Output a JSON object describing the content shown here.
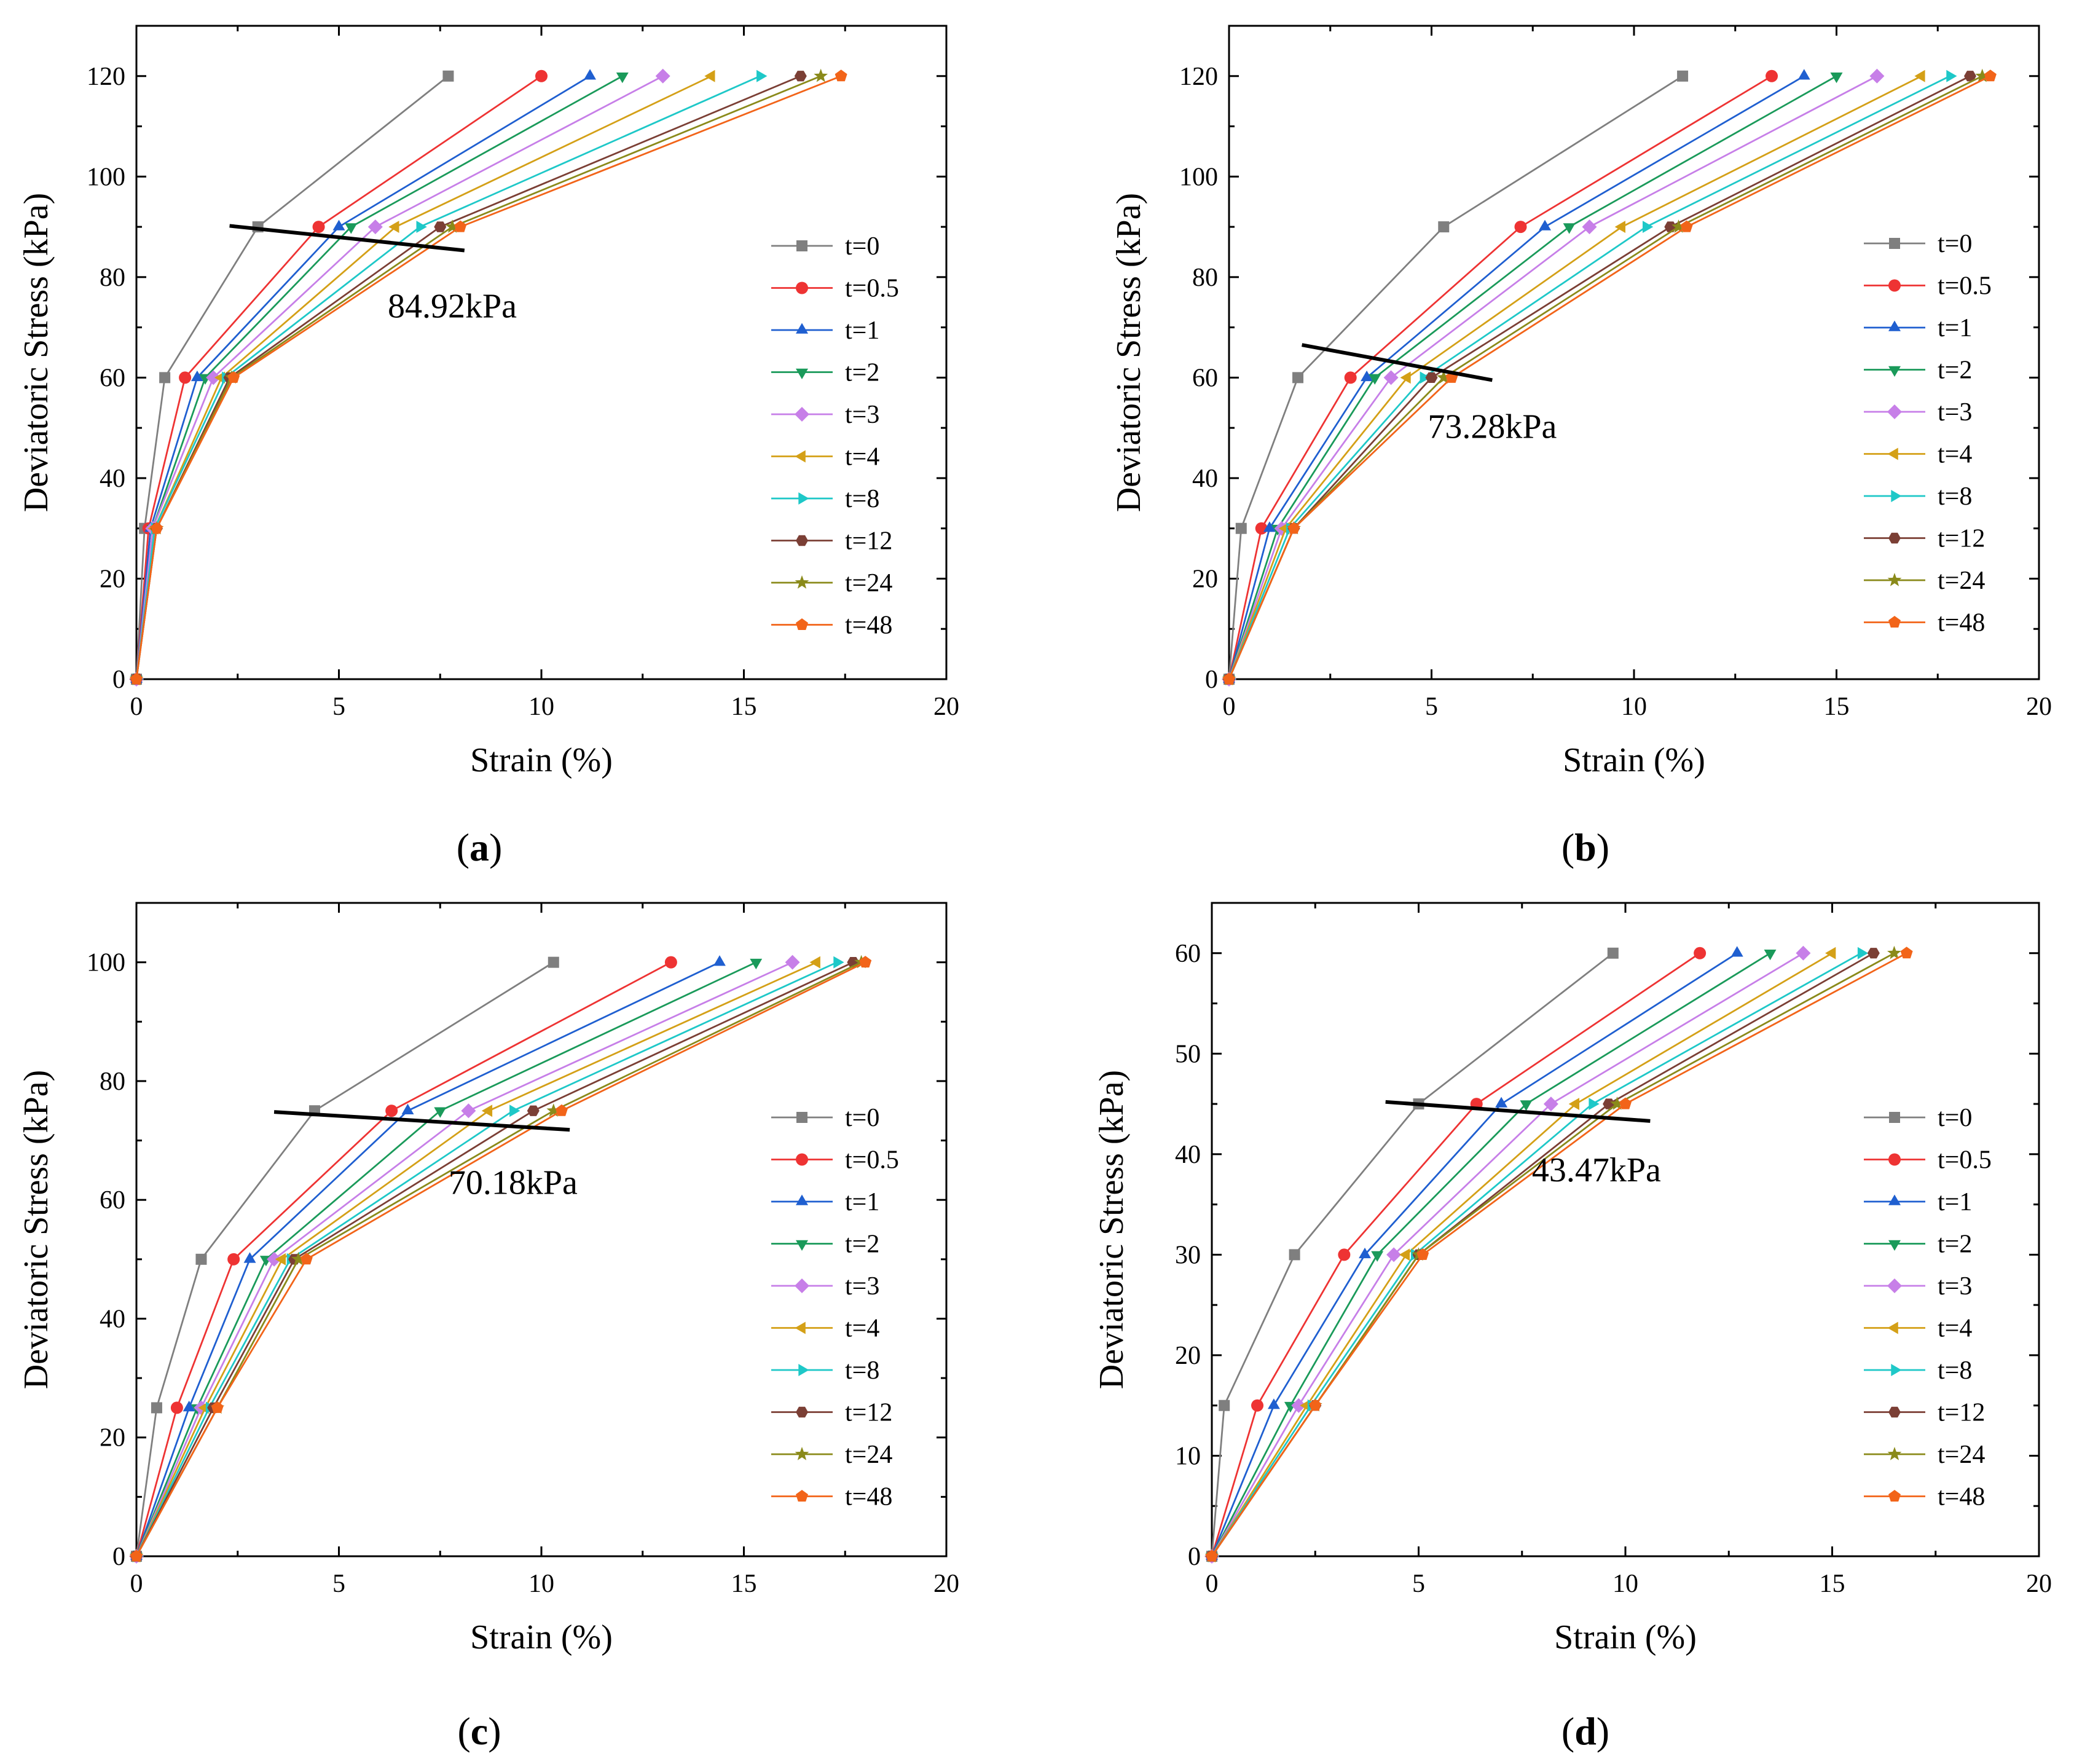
{
  "figure": {
    "colors": {
      "t=0": "#7f7f7f",
      "t=0.5": "#ee3333",
      "t=1": "#1f5fd0",
      "t=2": "#1a9a5a",
      "t=3": "#c77fe8",
      "t=4": "#d4a017",
      "t=8": "#1ec8c8",
      "t=12": "#7b3f35",
      "t=24": "#8a8a1a",
      "t=48": "#f26419",
      "reference_line": "#000000"
    },
    "markers": {
      "t=0": "square",
      "t=0.5": "circle",
      "t=1": "triangle-up",
      "t=2": "triangle-down",
      "t=3": "diamond",
      "t=4": "triangle-left",
      "t=8": "triangle-right",
      "t=12": "hexagon",
      "t=24": "star",
      "t=48": "pentagon"
    }
  },
  "chart_data": [
    {
      "panel": "a",
      "type": "line",
      "xlabel": "Strain (%)",
      "ylabel": "Deviatoric Stress (kPa)",
      "xlim": [
        0,
        20
      ],
      "ylim": [
        0,
        130
      ],
      "xticks": [
        0,
        5,
        10,
        15,
        20
      ],
      "yticks": [
        0,
        20,
        40,
        60,
        80,
        100,
        120
      ],
      "legend_position": "right",
      "annotation": "84.92kPa",
      "annotation_anchor": [
        7.8,
        72
      ],
      "ref_line": [
        [
          2.3,
          90.2
        ],
        [
          8.1,
          85.3
        ]
      ],
      "y": [
        0,
        30,
        60,
        90,
        120
      ],
      "series": [
        {
          "name": "t=0",
          "x": [
            0,
            0.2,
            0.7,
            3.0,
            7.7
          ]
        },
        {
          "name": "t=0.5",
          "x": [
            0,
            0.3,
            1.2,
            4.5,
            10.0
          ]
        },
        {
          "name": "t=1",
          "x": [
            0,
            0.35,
            1.5,
            5.0,
            11.2
          ]
        },
        {
          "name": "t=2",
          "x": [
            0,
            0.4,
            1.7,
            5.3,
            12.0
          ]
        },
        {
          "name": "t=3",
          "x": [
            0,
            0.4,
            1.9,
            5.9,
            13.0
          ]
        },
        {
          "name": "t=4",
          "x": [
            0,
            0.45,
            2.1,
            6.4,
            14.2
          ]
        },
        {
          "name": "t=8",
          "x": [
            0,
            0.45,
            2.2,
            7.0,
            15.4
          ]
        },
        {
          "name": "t=12",
          "x": [
            0,
            0.5,
            2.3,
            7.5,
            16.4
          ]
        },
        {
          "name": "t=24",
          "x": [
            0,
            0.5,
            2.35,
            7.8,
            16.9
          ]
        },
        {
          "name": "t=48",
          "x": [
            0,
            0.5,
            2.4,
            8.0,
            17.4
          ]
        }
      ]
    },
    {
      "panel": "b",
      "type": "line",
      "xlabel": "Strain (%)",
      "ylabel": "Deviatoric Stress (kPa)",
      "xlim": [
        0,
        20
      ],
      "ylim": [
        0,
        130
      ],
      "xticks": [
        0,
        5,
        10,
        15,
        20
      ],
      "yticks": [
        0,
        20,
        40,
        60,
        80,
        100,
        120
      ],
      "legend_position": "right",
      "annotation": "73.28kPa",
      "annotation_anchor": [
        6.5,
        48
      ],
      "ref_line": [
        [
          1.8,
          66.5
        ],
        [
          6.5,
          59.5
        ]
      ],
      "y": [
        0,
        30,
        60,
        90,
        120
      ],
      "series": [
        {
          "name": "t=0",
          "x": [
            0,
            0.3,
            1.7,
            5.3,
            11.2
          ]
        },
        {
          "name": "t=0.5",
          "x": [
            0,
            0.8,
            3.0,
            7.2,
            13.4
          ]
        },
        {
          "name": "t=1",
          "x": [
            0,
            1.0,
            3.4,
            7.8,
            14.2
          ]
        },
        {
          "name": "t=2",
          "x": [
            0,
            1.2,
            3.6,
            8.4,
            15.0
          ]
        },
        {
          "name": "t=3",
          "x": [
            0,
            1.3,
            4.0,
            8.9,
            16.0
          ]
        },
        {
          "name": "t=4",
          "x": [
            0,
            1.4,
            4.4,
            9.7,
            17.1
          ]
        },
        {
          "name": "t=8",
          "x": [
            0,
            1.5,
            4.8,
            10.3,
            17.8
          ]
        },
        {
          "name": "t=12",
          "x": [
            0,
            1.6,
            5.0,
            10.9,
            18.3
          ]
        },
        {
          "name": "t=24",
          "x": [
            0,
            1.6,
            5.3,
            11.1,
            18.6
          ]
        },
        {
          "name": "t=48",
          "x": [
            0,
            1.6,
            5.5,
            11.3,
            18.8
          ]
        }
      ]
    },
    {
      "panel": "c",
      "type": "line",
      "xlabel": "Strain (%)",
      "ylabel": "Deviatoric Stress (kPa)",
      "xlim": [
        0,
        20
      ],
      "ylim": [
        0,
        110
      ],
      "xticks": [
        0,
        5,
        10,
        15,
        20
      ],
      "yticks": [
        0,
        20,
        40,
        60,
        80,
        100
      ],
      "legend_position": "right",
      "annotation": "70.18kPa",
      "annotation_anchor": [
        9.3,
        61
      ],
      "ref_line": [
        [
          3.4,
          74.8
        ],
        [
          10.7,
          71.8
        ]
      ],
      "y": [
        0,
        25,
        50,
        75,
        100
      ],
      "series": [
        {
          "name": "t=0",
          "x": [
            0,
            0.5,
            1.6,
            4.4,
            10.3
          ]
        },
        {
          "name": "t=0.5",
          "x": [
            0,
            1.0,
            2.4,
            6.3,
            13.2
          ]
        },
        {
          "name": "t=1",
          "x": [
            0,
            1.3,
            2.8,
            6.7,
            14.4
          ]
        },
        {
          "name": "t=2",
          "x": [
            0,
            1.5,
            3.2,
            7.5,
            15.3
          ]
        },
        {
          "name": "t=3",
          "x": [
            0,
            1.6,
            3.4,
            8.2,
            16.2
          ]
        },
        {
          "name": "t=4",
          "x": [
            0,
            1.7,
            3.6,
            8.7,
            16.8
          ]
        },
        {
          "name": "t=8",
          "x": [
            0,
            1.8,
            3.8,
            9.3,
            17.3
          ]
        },
        {
          "name": "t=12",
          "x": [
            0,
            1.9,
            3.9,
            9.8,
            17.7
          ]
        },
        {
          "name": "t=24",
          "x": [
            0,
            2.0,
            4.0,
            10.3,
            17.9
          ]
        },
        {
          "name": "t=48",
          "x": [
            0,
            2.0,
            4.2,
            10.5,
            18.0
          ]
        }
      ]
    },
    {
      "panel": "d",
      "type": "line",
      "xlabel": "Strain (%)",
      "ylabel": "Deviatoric Stress (kPa)",
      "xlim": [
        0,
        20
      ],
      "ylim": [
        0,
        65
      ],
      "xticks": [
        0,
        5,
        10,
        15,
        20
      ],
      "yticks": [
        0,
        10,
        20,
        30,
        40,
        50,
        60
      ],
      "legend_position": "right",
      "annotation": "43.47kPa",
      "annotation_anchor": [
        9.3,
        37.3
      ],
      "ref_line": [
        [
          4.2,
          45.2
        ],
        [
          10.6,
          43.3
        ]
      ],
      "y": [
        0,
        15,
        30,
        45,
        60
      ],
      "series": [
        {
          "name": "t=0",
          "x": [
            0,
            0.3,
            2.0,
            5.0,
            9.7
          ]
        },
        {
          "name": "t=0.5",
          "x": [
            0,
            1.1,
            3.2,
            6.4,
            11.8
          ]
        },
        {
          "name": "t=1",
          "x": [
            0,
            1.5,
            3.7,
            7.0,
            12.7
          ]
        },
        {
          "name": "t=2",
          "x": [
            0,
            1.9,
            4.0,
            7.6,
            13.5
          ]
        },
        {
          "name": "t=3",
          "x": [
            0,
            2.1,
            4.4,
            8.2,
            14.3
          ]
        },
        {
          "name": "t=4",
          "x": [
            0,
            2.3,
            4.7,
            8.8,
            15.0
          ]
        },
        {
          "name": "t=8",
          "x": [
            0,
            2.4,
            4.9,
            9.2,
            15.7
          ]
        },
        {
          "name": "t=12",
          "x": [
            0,
            2.5,
            5.0,
            9.6,
            16.0
          ]
        },
        {
          "name": "t=24",
          "x": [
            0,
            2.5,
            5.0,
            9.8,
            16.5
          ]
        },
        {
          "name": "t=48",
          "x": [
            0,
            2.5,
            5.1,
            10.0,
            16.8
          ]
        }
      ]
    }
  ]
}
